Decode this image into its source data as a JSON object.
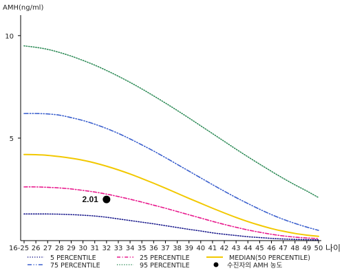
{
  "chart_data": {
    "type": "line",
    "ylabel": "AMH(ng/ml)",
    "xlabel": "나이",
    "ylim": [
      0,
      11
    ],
    "y_ticks": [
      "10",
      "5"
    ],
    "y_tick_values": [
      10,
      5
    ],
    "categories": [
      "16-25",
      "26",
      "27",
      "28",
      "29",
      "30",
      "31",
      "32",
      "33",
      "34",
      "35",
      "36",
      "37",
      "38",
      "39",
      "40",
      "41",
      "42",
      "43",
      "44",
      "45",
      "46",
      "47",
      "48",
      "49",
      "50"
    ],
    "series": [
      {
        "name": "5 PERCENTILE",
        "color": "#1a1a8c",
        "dash": "dotted",
        "values": [
          1.3,
          1.3,
          1.3,
          1.29,
          1.27,
          1.24,
          1.2,
          1.14,
          1.06,
          0.98,
          0.9,
          0.82,
          0.73,
          0.64,
          0.55,
          0.47,
          0.38,
          0.31,
          0.25,
          0.19,
          0.15,
          0.11,
          0.08,
          0.06,
          0.05,
          0.04
        ]
      },
      {
        "name": "25 PERCENTILE",
        "color": "#e8188c",
        "dash": "dashdot",
        "values": [
          2.62,
          2.62,
          2.6,
          2.57,
          2.52,
          2.45,
          2.37,
          2.27,
          2.15,
          2.02,
          1.88,
          1.73,
          1.58,
          1.42,
          1.26,
          1.1,
          0.94,
          0.79,
          0.65,
          0.52,
          0.41,
          0.31,
          0.23,
          0.17,
          0.13,
          0.1
        ]
      },
      {
        "name": "MEDIAN(50 PERCENTILE)",
        "color": "#f2c800",
        "dash": "solid",
        "values": [
          4.2,
          4.19,
          4.16,
          4.1,
          4.02,
          3.92,
          3.79,
          3.63,
          3.45,
          3.25,
          3.03,
          2.8,
          2.56,
          2.31,
          2.06,
          1.82,
          1.58,
          1.35,
          1.13,
          0.93,
          0.75,
          0.59,
          0.46,
          0.35,
          0.27,
          0.21
        ]
      },
      {
        "name": "75 PERCENTILE",
        "color": "#3a5fcd",
        "dash": "dashdotdot",
        "values": [
          6.2,
          6.2,
          6.18,
          6.12,
          6.0,
          5.86,
          5.68,
          5.47,
          5.23,
          4.96,
          4.67,
          4.37,
          4.05,
          3.72,
          3.39,
          3.06,
          2.73,
          2.41,
          2.1,
          1.81,
          1.53,
          1.27,
          1.04,
          0.84,
          0.66,
          0.5
        ]
      },
      {
        "name": "95 PERCENTILE",
        "color": "#2e8b57",
        "dash": "dotted",
        "values": [
          9.5,
          9.43,
          9.33,
          9.18,
          9.0,
          8.79,
          8.56,
          8.3,
          8.02,
          7.72,
          7.4,
          7.06,
          6.71,
          6.35,
          5.98,
          5.6,
          5.22,
          4.84,
          4.46,
          4.09,
          3.73,
          3.38,
          3.04,
          2.72,
          2.42,
          2.1
        ]
      }
    ],
    "marker": {
      "name": "수진자의 AMH 농도",
      "x": "32",
      "y": 2.01,
      "label": "2.01",
      "color": "#000000"
    },
    "legend": [
      {
        "label": "5 PERCENTILE",
        "series": 0
      },
      {
        "label": "25 PERCENTILE",
        "series": 1
      },
      {
        "label": "MEDIAN(50 PERCENTILE)",
        "series": 2
      },
      {
        "label": "75 PERCENTILE",
        "series": 3
      },
      {
        "label": "95 PERCENTILE",
        "series": 4
      },
      {
        "label": "수진자의 AMH 농도",
        "marker": true
      }
    ],
    "legend_placement": "bottom",
    "grid": false
  }
}
